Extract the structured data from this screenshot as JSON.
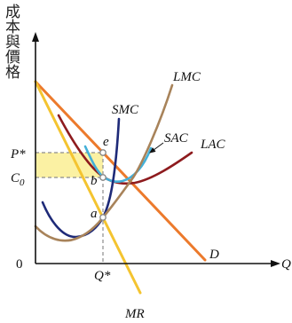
{
  "axes": {
    "y_label": "成本與價格",
    "x_label": "Q",
    "origin": "0"
  },
  "price_labels": {
    "p_star": "P*",
    "c0": {
      "base": "C",
      "sub": "0"
    }
  },
  "quantity_label": "Q*",
  "points": {
    "e": "e",
    "b": "b",
    "a": "a"
  },
  "curves": {
    "lmc": "LMC",
    "smc": "SMC",
    "sac": "SAC",
    "lac": "LAC",
    "demand": "D",
    "mr": "MR"
  },
  "colors": {
    "demand": "#ec7a2c",
    "mr": "#f4c430",
    "lmc": "#a8835a",
    "smc": "#1e2a78",
    "sac": "#43b0d8",
    "lac": "#8e1b1e",
    "highlight": "#fbf1a3"
  }
}
